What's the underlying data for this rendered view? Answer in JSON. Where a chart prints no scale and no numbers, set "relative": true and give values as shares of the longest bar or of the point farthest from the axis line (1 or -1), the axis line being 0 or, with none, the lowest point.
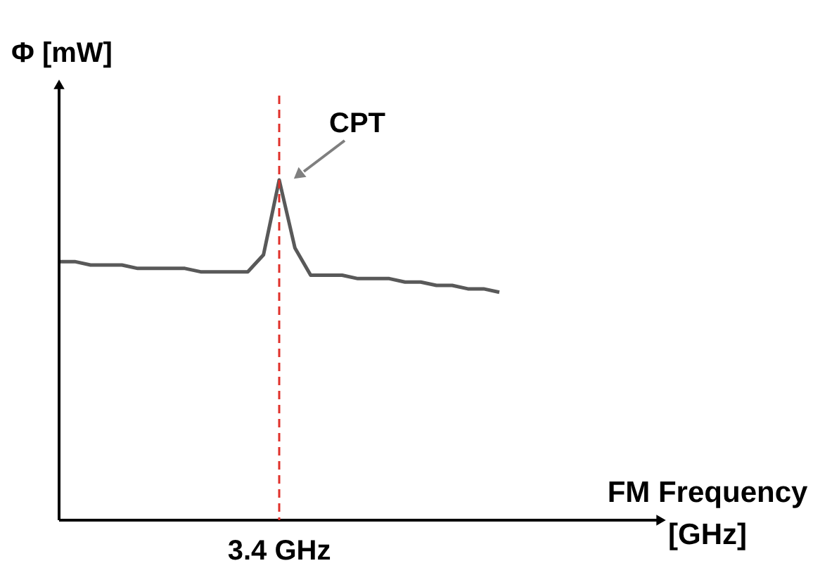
{
  "chart_data": {
    "type": "line",
    "relative": true,
    "xlabel": "FM Frequency\n[GHz]",
    "ylabel": "Φ [mW]",
    "categories": [
      null,
      null,
      null,
      null,
      null,
      null,
      null,
      null,
      null,
      null,
      null,
      null,
      null,
      null,
      null,
      null,
      null,
      null,
      null,
      null,
      null,
      null,
      null,
      null,
      null,
      null,
      null,
      null,
      null
    ],
    "series": [
      {
        "color": "#595959",
        "values": [
          0.76,
          0.76,
          0.75,
          0.75,
          0.75,
          0.74,
          0.74,
          0.74,
          0.74,
          0.73,
          0.73,
          0.73,
          0.73,
          0.78,
          1,
          0.8,
          0.72,
          0.72,
          0.72,
          0.71,
          0.71,
          0.71,
          0.7,
          0.7,
          0.69,
          0.69,
          0.68,
          0.68,
          0.67
        ]
      }
    ],
    "ref_lines": [
      {
        "axis": "x",
        "label": "3.4 GHz",
        "color": "#e0302a",
        "line_style": "dashed"
      }
    ],
    "annotations": [
      "CPT"
    ]
  }
}
